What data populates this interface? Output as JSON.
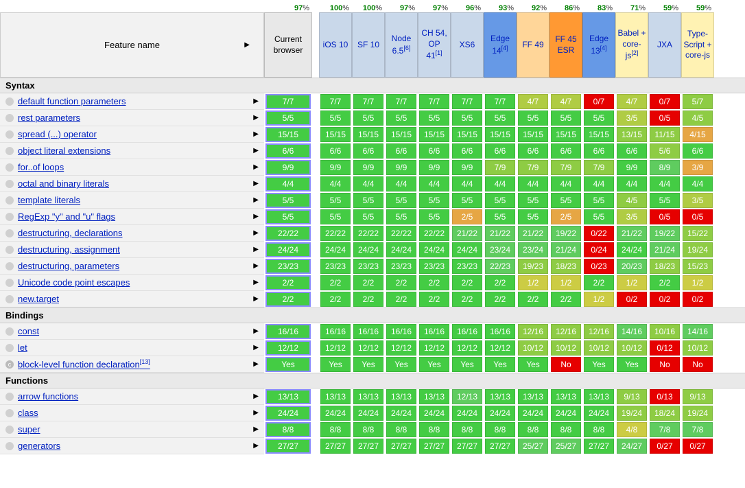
{
  "header": {
    "feature_label": "Feature name",
    "current_label": "Current browser"
  },
  "colors": {
    "green": "#008000",
    "full": "#44cc44",
    "almost": "#5fcc5f",
    "mid": "#8ecc44",
    "lowmid": "#b0cc44",
    "half": "#cccc44",
    "orange": "#e6a644",
    "red": "#e60000",
    "hdr_lightblue": "#c9d8ea",
    "hdr_blue": "#6699e6",
    "hdr_lightorange": "#ffd699",
    "hdr_orange": "#ff9933",
    "hdr_yellow": "#fff2b3"
  },
  "browsers": [
    {
      "id": "ios10",
      "label": "iOS 10",
      "pct": 100,
      "bg": "#c9d8ea",
      "sup": ""
    },
    {
      "id": "sf10",
      "label": "SF 10",
      "pct": 100,
      "bg": "#c9d8ea",
      "sup": ""
    },
    {
      "id": "node65",
      "label": "Node 6.5",
      "pct": 97,
      "bg": "#c9d8ea",
      "sup": "[6]"
    },
    {
      "id": "ch54",
      "label": "CH 54, OP 41",
      "pct": 97,
      "bg": "#c9d8ea",
      "sup": "[1]"
    },
    {
      "id": "xs6",
      "label": "XS6",
      "pct": 96,
      "bg": "#c9d8ea",
      "sup": ""
    },
    {
      "id": "edge14",
      "label": "Edge 14",
      "pct": 93,
      "bg": "#6699e6",
      "sup": "[4]"
    },
    {
      "id": "ff49",
      "label": "FF 49",
      "pct": 92,
      "bg": "#ffd699",
      "sup": ""
    },
    {
      "id": "ff45",
      "label": "FF 45 ESR",
      "pct": 86,
      "bg": "#ff9933",
      "sup": ""
    },
    {
      "id": "edge13",
      "label": "Edge 13",
      "pct": 83,
      "bg": "#6699e6",
      "sup": "[4]"
    },
    {
      "id": "babel",
      "label": "Babel + core-js",
      "pct": 71,
      "bg": "#fff2b3",
      "sup": "[2]"
    },
    {
      "id": "jxa",
      "label": "JXA",
      "pct": 59,
      "bg": "#c9d8ea",
      "sup": ""
    },
    {
      "id": "ts",
      "label": "Type-Script + core-js",
      "pct": 59,
      "bg": "#fff2b3",
      "sup": ""
    }
  ],
  "current_pct": 97,
  "sections": [
    {
      "title": "Syntax",
      "rows": [
        {
          "name": "default function parameters",
          "current": "7/7",
          "c_color": "#44cc44",
          "cells": [
            "7/7",
            "7/7",
            "7/7",
            "7/7",
            "7/7",
            "7/7",
            "4/7",
            "4/7",
            "0/7",
            "4/7",
            "0/7",
            "5/7"
          ],
          "colors": [
            "#44cc44",
            "#44cc44",
            "#44cc44",
            "#44cc44",
            "#44cc44",
            "#44cc44",
            "#b0cc44",
            "#b0cc44",
            "#e60000",
            "#b0cc44",
            "#e60000",
            "#8ecc44"
          ]
        },
        {
          "name": "rest parameters",
          "current": "5/5",
          "c_color": "#44cc44",
          "cells": [
            "5/5",
            "5/5",
            "5/5",
            "5/5",
            "5/5",
            "5/5",
            "5/5",
            "5/5",
            "5/5",
            "3/5",
            "0/5",
            "4/5"
          ],
          "colors": [
            "#44cc44",
            "#44cc44",
            "#44cc44",
            "#44cc44",
            "#44cc44",
            "#44cc44",
            "#44cc44",
            "#44cc44",
            "#44cc44",
            "#b0cc44",
            "#e60000",
            "#8ecc44"
          ]
        },
        {
          "name": "spread (...) operator",
          "current": "15/15",
          "c_color": "#44cc44",
          "cells": [
            "15/15",
            "15/15",
            "15/15",
            "15/15",
            "15/15",
            "15/15",
            "15/15",
            "15/15",
            "15/15",
            "13/15",
            "11/15",
            "4/15"
          ],
          "colors": [
            "#44cc44",
            "#44cc44",
            "#44cc44",
            "#44cc44",
            "#44cc44",
            "#44cc44",
            "#44cc44",
            "#44cc44",
            "#44cc44",
            "#8ecc44",
            "#8ecc44",
            "#e6a644"
          ]
        },
        {
          "name": "object literal extensions",
          "current": "6/6",
          "c_color": "#44cc44",
          "cells": [
            "6/6",
            "6/6",
            "6/6",
            "6/6",
            "6/6",
            "6/6",
            "6/6",
            "6/6",
            "6/6",
            "6/6",
            "5/6",
            "6/6"
          ],
          "colors": [
            "#44cc44",
            "#44cc44",
            "#44cc44",
            "#44cc44",
            "#44cc44",
            "#44cc44",
            "#44cc44",
            "#44cc44",
            "#44cc44",
            "#44cc44",
            "#8ecc44",
            "#44cc44"
          ]
        },
        {
          "name": "for..of loops",
          "current": "9/9",
          "c_color": "#44cc44",
          "cells": [
            "9/9",
            "9/9",
            "9/9",
            "9/9",
            "9/9",
            "7/9",
            "7/9",
            "7/9",
            "7/9",
            "9/9",
            "8/9",
            "3/9"
          ],
          "colors": [
            "#44cc44",
            "#44cc44",
            "#44cc44",
            "#44cc44",
            "#44cc44",
            "#8ecc44",
            "#8ecc44",
            "#8ecc44",
            "#8ecc44",
            "#44cc44",
            "#5fcc5f",
            "#e6a644"
          ]
        },
        {
          "name": "octal and binary literals",
          "current": "4/4",
          "c_color": "#44cc44",
          "cells": [
            "4/4",
            "4/4",
            "4/4",
            "4/4",
            "4/4",
            "4/4",
            "4/4",
            "4/4",
            "4/4",
            "4/4",
            "4/4",
            "4/4"
          ],
          "colors": [
            "#44cc44",
            "#44cc44",
            "#44cc44",
            "#44cc44",
            "#44cc44",
            "#44cc44",
            "#44cc44",
            "#44cc44",
            "#44cc44",
            "#44cc44",
            "#44cc44",
            "#44cc44"
          ]
        },
        {
          "name": "template literals",
          "current": "5/5",
          "c_color": "#44cc44",
          "cells": [
            "5/5",
            "5/5",
            "5/5",
            "5/5",
            "5/5",
            "5/5",
            "5/5",
            "5/5",
            "5/5",
            "4/5",
            "5/5",
            "3/5"
          ],
          "colors": [
            "#44cc44",
            "#44cc44",
            "#44cc44",
            "#44cc44",
            "#44cc44",
            "#44cc44",
            "#44cc44",
            "#44cc44",
            "#44cc44",
            "#8ecc44",
            "#44cc44",
            "#b0cc44"
          ]
        },
        {
          "name": "RegExp \"y\" and \"u\" flags",
          "current": "5/5",
          "c_color": "#44cc44",
          "cells": [
            "5/5",
            "5/5",
            "5/5",
            "5/5",
            "2/5",
            "5/5",
            "5/5",
            "2/5",
            "5/5",
            "3/5",
            "0/5",
            "0/5"
          ],
          "colors": [
            "#44cc44",
            "#44cc44",
            "#44cc44",
            "#44cc44",
            "#e6a644",
            "#44cc44",
            "#44cc44",
            "#e6a644",
            "#44cc44",
            "#b0cc44",
            "#e60000",
            "#e60000"
          ]
        },
        {
          "name": "destructuring, declarations",
          "current": "22/22",
          "c_color": "#44cc44",
          "cells": [
            "22/22",
            "22/22",
            "22/22",
            "22/22",
            "21/22",
            "21/22",
            "21/22",
            "19/22",
            "0/22",
            "21/22",
            "19/22",
            "15/22"
          ],
          "colors": [
            "#44cc44",
            "#44cc44",
            "#44cc44",
            "#44cc44",
            "#5fcc5f",
            "#5fcc5f",
            "#5fcc5f",
            "#5fcc5f",
            "#e60000",
            "#5fcc5f",
            "#5fcc5f",
            "#8ecc44"
          ]
        },
        {
          "name": "destructuring, assignment",
          "current": "24/24",
          "c_color": "#44cc44",
          "cells": [
            "24/24",
            "24/24",
            "24/24",
            "24/24",
            "24/24",
            "23/24",
            "23/24",
            "21/24",
            "0/24",
            "24/24",
            "21/24",
            "19/24"
          ],
          "colors": [
            "#44cc44",
            "#44cc44",
            "#44cc44",
            "#44cc44",
            "#44cc44",
            "#5fcc5f",
            "#5fcc5f",
            "#5fcc5f",
            "#e60000",
            "#44cc44",
            "#5fcc5f",
            "#8ecc44"
          ]
        },
        {
          "name": "destructuring, parameters",
          "current": "23/23",
          "c_color": "#44cc44",
          "cells": [
            "23/23",
            "23/23",
            "23/23",
            "23/23",
            "23/23",
            "22/23",
            "19/23",
            "18/23",
            "0/23",
            "20/23",
            "18/23",
            "15/23"
          ],
          "colors": [
            "#44cc44",
            "#44cc44",
            "#44cc44",
            "#44cc44",
            "#44cc44",
            "#5fcc5f",
            "#8ecc44",
            "#8ecc44",
            "#e60000",
            "#5fcc5f",
            "#8ecc44",
            "#8ecc44"
          ]
        },
        {
          "name": "Unicode code point escapes",
          "current": "2/2",
          "c_color": "#44cc44",
          "cells": [
            "2/2",
            "2/2",
            "2/2",
            "2/2",
            "2/2",
            "2/2",
            "1/2",
            "1/2",
            "2/2",
            "1/2",
            "2/2",
            "1/2"
          ],
          "colors": [
            "#44cc44",
            "#44cc44",
            "#44cc44",
            "#44cc44",
            "#44cc44",
            "#44cc44",
            "#cccc44",
            "#cccc44",
            "#44cc44",
            "#cccc44",
            "#44cc44",
            "#cccc44"
          ]
        },
        {
          "name": "new.target",
          "current": "2/2",
          "c_color": "#44cc44",
          "cells": [
            "2/2",
            "2/2",
            "2/2",
            "2/2",
            "2/2",
            "2/2",
            "2/2",
            "2/2",
            "1/2",
            "0/2",
            "0/2",
            "0/2"
          ],
          "colors": [
            "#44cc44",
            "#44cc44",
            "#44cc44",
            "#44cc44",
            "#44cc44",
            "#44cc44",
            "#44cc44",
            "#44cc44",
            "#cccc44",
            "#e60000",
            "#e60000",
            "#e60000"
          ]
        }
      ]
    },
    {
      "title": "Bindings",
      "rows": [
        {
          "name": "const",
          "current": "16/16",
          "c_color": "#44cc44",
          "cells": [
            "16/16",
            "16/16",
            "16/16",
            "16/16",
            "16/16",
            "16/16",
            "12/16",
            "12/16",
            "12/16",
            "14/16",
            "10/16",
            "14/16"
          ],
          "colors": [
            "#44cc44",
            "#44cc44",
            "#44cc44",
            "#44cc44",
            "#44cc44",
            "#44cc44",
            "#8ecc44",
            "#8ecc44",
            "#8ecc44",
            "#5fcc5f",
            "#8ecc44",
            "#5fcc5f"
          ]
        },
        {
          "name": "let",
          "current": "12/12",
          "c_color": "#44cc44",
          "cells": [
            "12/12",
            "12/12",
            "12/12",
            "12/12",
            "12/12",
            "12/12",
            "10/12",
            "10/12",
            "10/12",
            "10/12",
            "0/12",
            "10/12"
          ],
          "colors": [
            "#44cc44",
            "#44cc44",
            "#44cc44",
            "#44cc44",
            "#44cc44",
            "#44cc44",
            "#8ecc44",
            "#8ecc44",
            "#8ecc44",
            "#8ecc44",
            "#e60000",
            "#8ecc44"
          ]
        },
        {
          "name": "block-level function declaration",
          "sup": "[13]",
          "circ": "c",
          "current": "Yes",
          "c_color": "#44cc44",
          "cells": [
            "Yes",
            "Yes",
            "Yes",
            "Yes",
            "Yes",
            "Yes",
            "Yes",
            "No",
            "Yes",
            "Yes",
            "No",
            "No"
          ],
          "colors": [
            "#44cc44",
            "#44cc44",
            "#44cc44",
            "#44cc44",
            "#44cc44",
            "#44cc44",
            "#44cc44",
            "#e60000",
            "#44cc44",
            "#44cc44",
            "#e60000",
            "#e60000"
          ]
        }
      ]
    },
    {
      "title": "Functions",
      "rows": [
        {
          "name": "arrow functions",
          "current": "13/13",
          "c_color": "#44cc44",
          "cells": [
            "13/13",
            "13/13",
            "13/13",
            "13/13",
            "12/13",
            "13/13",
            "13/13",
            "13/13",
            "13/13",
            "9/13",
            "0/13",
            "9/13"
          ],
          "colors": [
            "#44cc44",
            "#44cc44",
            "#44cc44",
            "#44cc44",
            "#5fcc5f",
            "#44cc44",
            "#44cc44",
            "#44cc44",
            "#44cc44",
            "#8ecc44",
            "#e60000",
            "#8ecc44"
          ]
        },
        {
          "name": "class",
          "current": "24/24",
          "c_color": "#44cc44",
          "cells": [
            "24/24",
            "24/24",
            "24/24",
            "24/24",
            "24/24",
            "24/24",
            "24/24",
            "24/24",
            "24/24",
            "19/24",
            "18/24",
            "19/24"
          ],
          "colors": [
            "#44cc44",
            "#44cc44",
            "#44cc44",
            "#44cc44",
            "#44cc44",
            "#44cc44",
            "#44cc44",
            "#44cc44",
            "#44cc44",
            "#8ecc44",
            "#8ecc44",
            "#8ecc44"
          ]
        },
        {
          "name": "super",
          "current": "8/8",
          "c_color": "#44cc44",
          "cells": [
            "8/8",
            "8/8",
            "8/8",
            "8/8",
            "8/8",
            "8/8",
            "8/8",
            "8/8",
            "8/8",
            "4/8",
            "7/8",
            "7/8"
          ],
          "colors": [
            "#44cc44",
            "#44cc44",
            "#44cc44",
            "#44cc44",
            "#44cc44",
            "#44cc44",
            "#44cc44",
            "#44cc44",
            "#44cc44",
            "#cccc44",
            "#5fcc5f",
            "#5fcc5f"
          ]
        },
        {
          "name": "generators",
          "current": "27/27",
          "c_color": "#44cc44",
          "cells": [
            "27/27",
            "27/27",
            "27/27",
            "27/27",
            "27/27",
            "27/27",
            "25/27",
            "25/27",
            "27/27",
            "24/27",
            "0/27",
            "0/27"
          ],
          "colors": [
            "#44cc44",
            "#44cc44",
            "#44cc44",
            "#44cc44",
            "#44cc44",
            "#44cc44",
            "#5fcc5f",
            "#5fcc5f",
            "#44cc44",
            "#5fcc5f",
            "#e60000",
            "#e60000"
          ]
        }
      ]
    }
  ]
}
